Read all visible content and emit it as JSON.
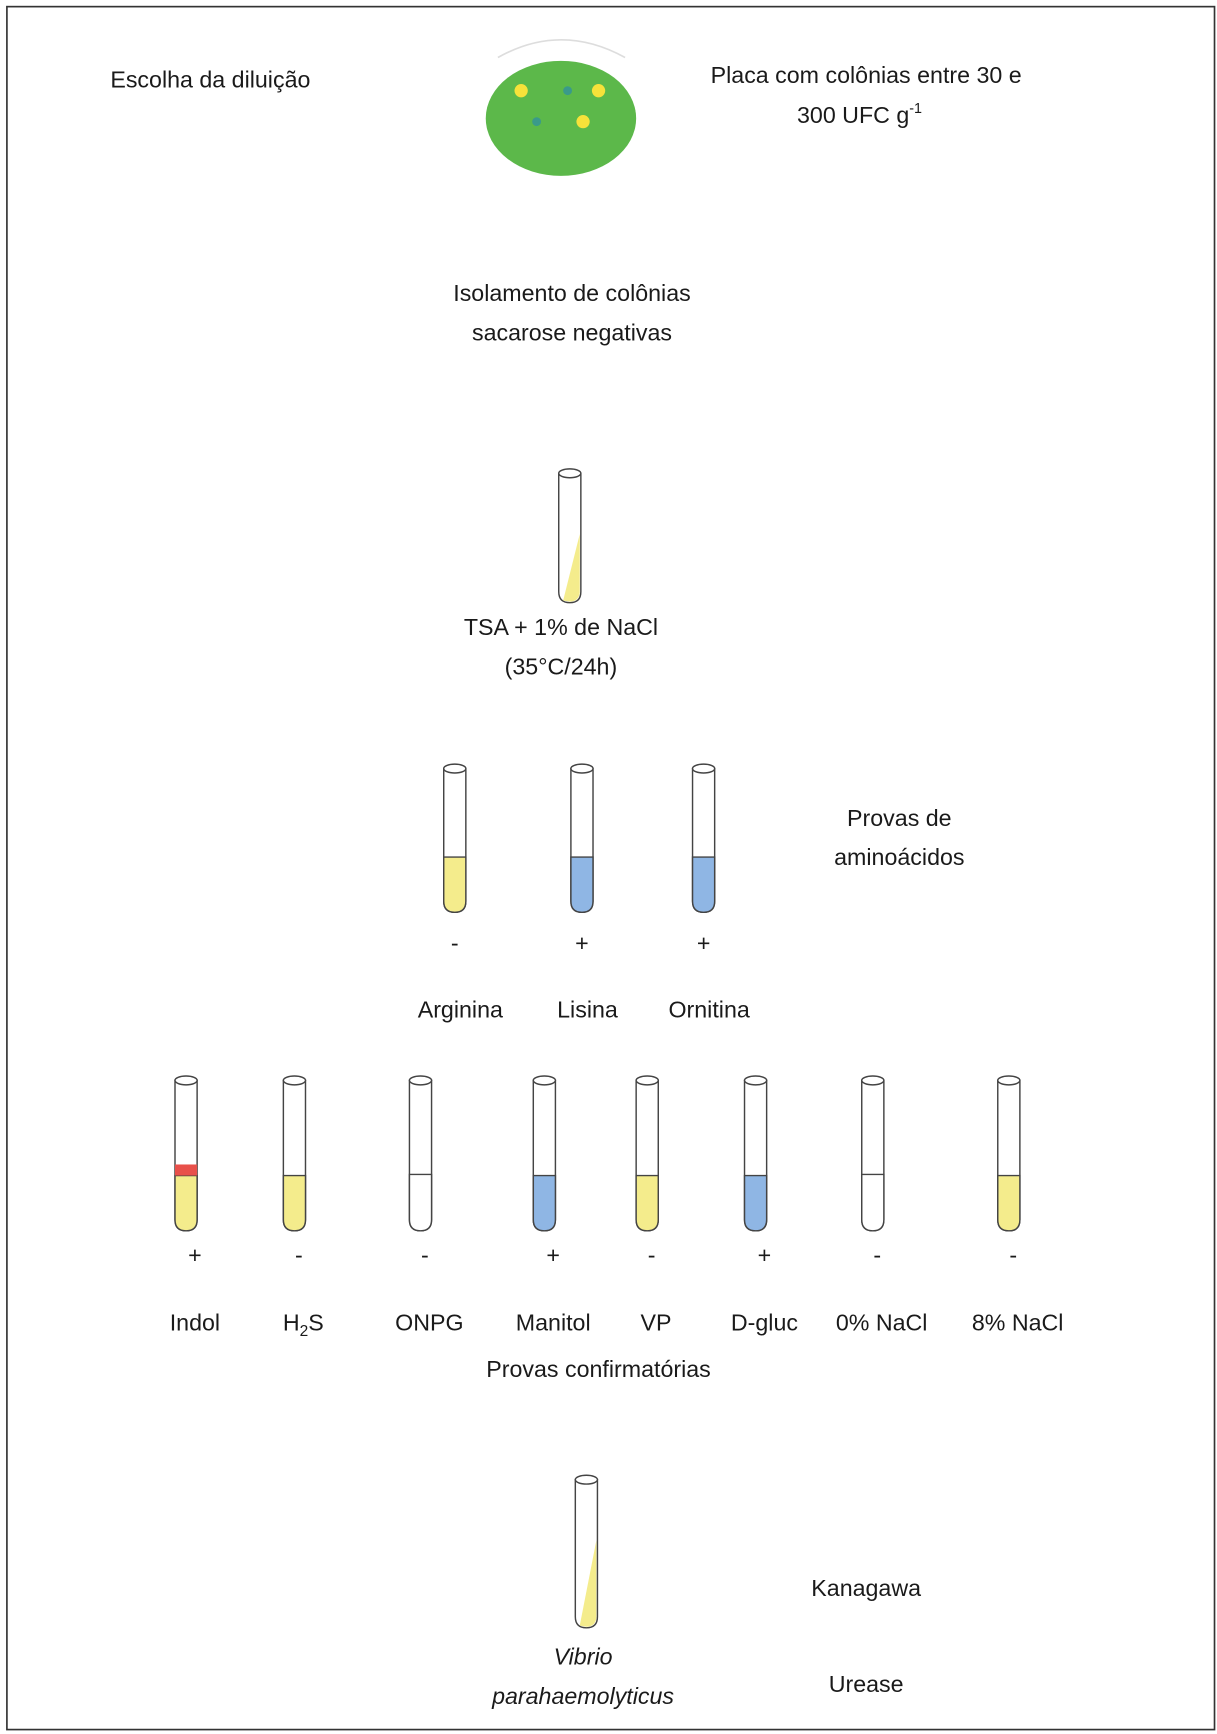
{
  "plate": {
    "left_label": "Escolha da diluição",
    "right_label_line1": "Placa com colônias entre 30 e",
    "right_label_line2": "300 UFC g",
    "right_label_sup": "-1"
  },
  "isolation": {
    "line1": "Isolamento de colônias",
    "line2": "sacarose negativas"
  },
  "tsa": {
    "line1": "TSA + 1% de NaCl",
    "line2": "(35°C/24h)"
  },
  "amino_tests": {
    "label_line1": "Provas de",
    "label_line2": "aminoácidos",
    "tests": [
      {
        "sign": "-",
        "name": "Arginina",
        "color": "#f4ec8c"
      },
      {
        "sign": "+",
        "name": "Lisina",
        "color": "#8fb6e4"
      },
      {
        "sign": "+",
        "name": "Ornitina",
        "color": "#8fb6e4"
      }
    ]
  },
  "confirm_tests": {
    "label": "Provas confirmatórias",
    "tests": [
      {
        "sign": "+",
        "name": "Indol",
        "color": "#f4ec8c",
        "band": "#e8504a"
      },
      {
        "sign": "-",
        "name": "H",
        "sub": "2",
        "tail": "S",
        "color": "#f4ec8c"
      },
      {
        "sign": "-",
        "name": "ONPG",
        "color": "#ffffff"
      },
      {
        "sign": "+",
        "name": "Manitol",
        "color": "#8fb6e4"
      },
      {
        "sign": "-",
        "name": "VP",
        "color": "#f4ec8c"
      },
      {
        "sign": "+",
        "name": "D-gluc",
        "color": "#8fb6e4"
      },
      {
        "sign": "-",
        "name": "0% NaCl",
        "color": "#ffffff"
      },
      {
        "sign": "-",
        "name": "8% NaCl",
        "color": "#f4ec8c"
      }
    ]
  },
  "result": {
    "genus": "Vibrio",
    "species": "parahaemolyticus",
    "test1": "Kanagawa",
    "test2": "Urease"
  }
}
